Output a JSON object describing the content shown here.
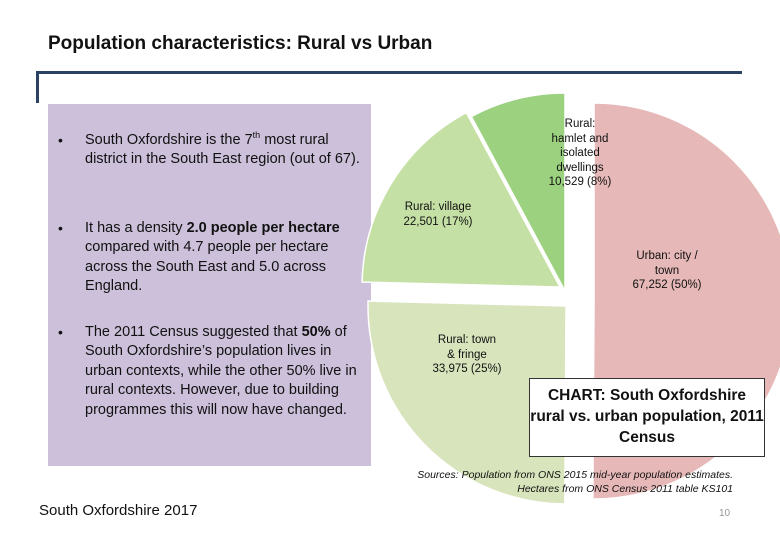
{
  "slide": {
    "title": "Population characteristics: Rural vs Urban",
    "bullets": [
      {
        "marker": "•",
        "pre": "South Oxfordshire is the 7",
        "sup": "th",
        "post": " most rural district in the South East region (out of 67)."
      },
      {
        "marker": "•",
        "pre": "It has a density ",
        "bold": "2.0 people per hectare",
        "post": " compared with 4.7 people per hectare across the South East and 5.0 across England."
      },
      {
        "marker": "•",
        "pre": "The 2011 Census suggested that ",
        "bold": "50%",
        "post": " of South Oxfordshire’s population lives in urban contexts, while the other 50% live in rural contexts. However, due to building programmes this will now have changed."
      }
    ],
    "footer": "South Oxfordshire  2017",
    "page_number": "10",
    "sources": {
      "line1": "Sources: Population from ONS 2015 mid-year population estimates.",
      "line2": "Hectares from ONS Census 2011 table KS101"
    },
    "callout": "CHART: South Oxfordshire rural vs. urban population, 2011 Census",
    "colors": {
      "title_rule": "#2b4263",
      "panel": "#ccc0da",
      "urban": "#e6b8b7",
      "rural_hamlet": "#9bd17f",
      "rural_village": "#c5e0a5",
      "rural_town": "#d8e4bc"
    }
  },
  "chart_data": {
    "type": "pie",
    "title": "",
    "slices": [
      {
        "label": "Urban: city / town",
        "value": 67252,
        "percent": 50,
        "display": [
          "Urban: city /",
          "town",
          "67,252 (50%)"
        ]
      },
      {
        "label": "Rural: town & fringe",
        "value": 33975,
        "percent": 25,
        "display": [
          "Rural: town",
          "& fringe",
          "33,975 (25%)"
        ]
      },
      {
        "label": "Rural: village",
        "value": 22501,
        "percent": 17,
        "display": [
          "Rural: village",
          "22,501 (17%)"
        ]
      },
      {
        "label": "Rural: hamlet and isolated dwellings",
        "value": 10529,
        "percent": 8,
        "display": [
          "Rural:",
          "hamlet and",
          "isolated",
          "dwellings",
          "10,529 (8%)"
        ]
      }
    ]
  }
}
